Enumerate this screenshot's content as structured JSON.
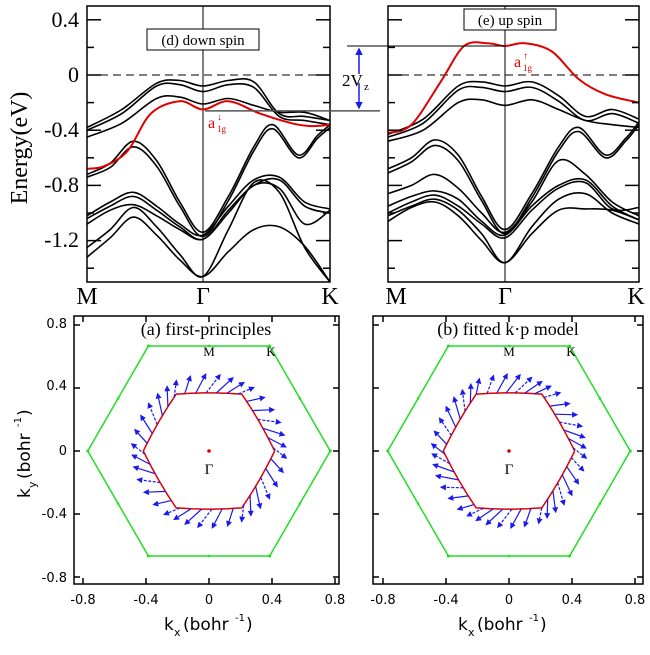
{
  "colors": {
    "band": "#000000",
    "highlight_band": "#e00000",
    "bz_boundary": "#22dd22",
    "fermi_contour": "#e00000",
    "spin_arrow": "#1a1aee",
    "gamma_point": "#e00000",
    "annotation_arrow": "#1a1aee"
  },
  "chart_data": [
    {
      "id": "d",
      "type": "line",
      "title": "(d) down spin",
      "ylabel": "Energy(eV)",
      "xlabel": "",
      "ylim": [
        -1.5,
        0.5
      ],
      "yticks": [
        0.4,
        0,
        -0.4,
        -0.8,
        -1.2
      ],
      "ytick_labels": [
        "0.4",
        "0",
        "-0.4",
        "-0.8",
        "-1.2"
      ],
      "xticks": [
        0,
        1,
        2
      ],
      "xtick_labels": [
        "M",
        "Γ",
        "K"
      ],
      "fermi_level": 0,
      "highlight_label": "a1g↓",
      "highlight_label_main": "a",
      "highlight_label_sub": "1g",
      "highlight_label_sup": "↓",
      "highlight_band": {
        "x": [
          0,
          0.15,
          0.35,
          0.55,
          0.8,
          1.0,
          1.2,
          1.45,
          1.7,
          1.85,
          2.0
        ],
        "y": [
          -0.68,
          -0.66,
          -0.55,
          -0.28,
          -0.19,
          -0.25,
          -0.19,
          -0.28,
          -0.35,
          -0.37,
          -0.36
        ]
      },
      "bands": [
        {
          "x": [
            0,
            0.3,
            0.6,
            0.8,
            1.0,
            1.2,
            1.4,
            1.6,
            1.8,
            2.0
          ],
          "y": [
            -0.38,
            -0.25,
            -0.06,
            -0.04,
            -0.08,
            -0.04,
            -0.05,
            -0.28,
            -0.3,
            -0.33
          ]
        },
        {
          "x": [
            0,
            0.3,
            0.6,
            0.8,
            1.0,
            1.2,
            1.4,
            1.6,
            1.8,
            2.0
          ],
          "y": [
            -0.4,
            -0.28,
            -0.08,
            -0.07,
            -0.12,
            -0.07,
            -0.09,
            -0.3,
            -0.33,
            -0.36
          ]
        },
        {
          "x": [
            0,
            0.3,
            0.6,
            0.8,
            1.0,
            1.2,
            1.4,
            1.6,
            1.8,
            2.0
          ],
          "y": [
            -0.45,
            -0.35,
            -0.17,
            -0.16,
            -0.21,
            -0.17,
            -0.22,
            -0.27,
            -0.27,
            -0.33
          ]
        },
        {
          "x": [
            0,
            0.2,
            0.4,
            0.6,
            0.8,
            1.0,
            1.2,
            1.4,
            1.55,
            1.75,
            1.9,
            2.0
          ],
          "y": [
            -0.72,
            -0.64,
            -0.48,
            -0.62,
            -0.92,
            -1.14,
            -0.88,
            -0.52,
            -0.36,
            -0.58,
            -0.44,
            -0.36
          ]
        },
        {
          "x": [
            0,
            0.2,
            0.4,
            0.6,
            0.8,
            1.0,
            1.2,
            1.4,
            1.55,
            1.75,
            1.9,
            2.0
          ],
          "y": [
            -0.74,
            -0.67,
            -0.52,
            -0.66,
            -0.95,
            -1.17,
            -0.91,
            -0.55,
            -0.39,
            -0.6,
            -0.46,
            -0.38
          ]
        },
        {
          "x": [
            0,
            0.2,
            0.4,
            0.6,
            0.8,
            1.0,
            1.2,
            1.4,
            1.6,
            1.8,
            2.0
          ],
          "y": [
            -1.02,
            -0.92,
            -0.85,
            -0.95,
            -1.08,
            -1.16,
            -0.95,
            -0.76,
            -0.74,
            -0.92,
            -0.97
          ]
        },
        {
          "x": [
            0,
            0.2,
            0.4,
            0.6,
            0.8,
            1.0,
            1.2,
            1.4,
            1.6,
            1.8,
            2.0
          ],
          "y": [
            -1.04,
            -0.95,
            -0.88,
            -0.98,
            -1.1,
            -1.19,
            -0.98,
            -0.8,
            -0.76,
            -0.95,
            -1.0
          ]
        },
        {
          "x": [
            0,
            0.2,
            0.4,
            0.6,
            0.8,
            1.0,
            1.2,
            1.4,
            1.6,
            1.8,
            2.0
          ],
          "y": [
            -1.08,
            -0.98,
            -0.94,
            -1.02,
            -1.12,
            -1.19,
            -1.0,
            -0.8,
            -0.82,
            -1.08,
            -0.98
          ]
        },
        {
          "x": [
            0,
            0.2,
            0.4,
            0.6,
            0.8,
            1.0,
            1.2,
            1.4,
            1.6,
            1.8,
            2.0
          ],
          "y": [
            -1.25,
            -1.12,
            -0.96,
            -1.1,
            -1.3,
            -1.46,
            -1.12,
            -0.78,
            -0.85,
            -1.25,
            -1.5
          ]
        },
        {
          "x": [
            0,
            0.2,
            0.4,
            0.6,
            0.8,
            1.0,
            1.2,
            1.4,
            1.6,
            1.8,
            2.0
          ],
          "y": [
            -1.32,
            -1.18,
            -1.03,
            -1.16,
            -1.34,
            -1.46,
            -1.28,
            -1.12,
            -1.1,
            -1.24,
            -1.5
          ]
        }
      ]
    },
    {
      "id": "e",
      "type": "line",
      "title": "(e) up spin",
      "ylabel": "",
      "xlabel": "",
      "ylim": [
        -1.5,
        0.5
      ],
      "yticks": [
        0.4,
        0,
        -0.4,
        -0.8,
        -1.2
      ],
      "ytick_labels": [],
      "xticks": [
        0,
        1,
        2
      ],
      "xtick_labels": [
        "M",
        "Γ",
        "K"
      ],
      "fermi_level": 0,
      "highlight_label": "a1g↑",
      "highlight_label_main": "a",
      "highlight_label_sub": "1g",
      "highlight_label_sup": "↑",
      "splitting_label": "2V",
      "splitting_label_sub": "z",
      "splitting_levels_eV": [
        0.21,
        -0.26
      ],
      "highlight_band": {
        "x": [
          0,
          0.2,
          0.45,
          0.65,
          0.85,
          1.0,
          1.15,
          1.35,
          1.55,
          1.75,
          2.0
        ],
        "y": [
          -0.42,
          -0.36,
          -0.05,
          0.21,
          0.23,
          0.21,
          0.23,
          0.17,
          -0.03,
          -0.14,
          -0.2
        ]
      },
      "bands": [
        {
          "x": [
            0,
            0.3,
            0.6,
            0.8,
            1.0,
            1.2,
            1.4,
            1.6,
            1.8,
            2.0
          ],
          "y": [
            -0.43,
            -0.32,
            -0.08,
            -0.05,
            -0.08,
            -0.05,
            -0.15,
            -0.3,
            -0.25,
            -0.32
          ]
        },
        {
          "x": [
            0,
            0.3,
            0.6,
            0.8,
            1.0,
            1.2,
            1.4,
            1.6,
            1.8,
            2.0
          ],
          "y": [
            -0.45,
            -0.35,
            -0.11,
            -0.09,
            -0.12,
            -0.09,
            -0.19,
            -0.33,
            -0.28,
            -0.35
          ]
        },
        {
          "x": [
            0,
            0.3,
            0.6,
            0.8,
            1.0,
            1.2,
            1.4,
            1.6,
            1.8,
            2.0
          ],
          "y": [
            -0.48,
            -0.4,
            -0.2,
            -0.18,
            -0.22,
            -0.18,
            -0.25,
            -0.33,
            -0.36,
            -0.38
          ]
        },
        {
          "x": [
            0,
            0.2,
            0.4,
            0.6,
            0.8,
            1.0,
            1.2,
            1.4,
            1.55,
            1.75,
            1.9,
            2.0
          ],
          "y": [
            -0.68,
            -0.6,
            -0.47,
            -0.58,
            -0.88,
            -1.12,
            -0.86,
            -0.52,
            -0.38,
            -0.58,
            -0.46,
            -0.34
          ]
        },
        {
          "x": [
            0,
            0.2,
            0.4,
            0.6,
            0.8,
            1.0,
            1.2,
            1.4,
            1.55,
            1.75,
            1.9,
            2.0
          ],
          "y": [
            -0.71,
            -0.63,
            -0.51,
            -0.62,
            -0.91,
            -1.15,
            -0.89,
            -0.55,
            -0.41,
            -0.6,
            -0.48,
            -0.36
          ]
        },
        {
          "x": [
            0,
            0.2,
            0.4,
            0.6,
            0.8,
            1.0,
            1.2,
            1.4,
            1.6,
            1.8,
            2.0
          ],
          "y": [
            -0.86,
            -0.8,
            -0.72,
            -0.82,
            -1.0,
            -1.14,
            -0.92,
            -0.62,
            -0.72,
            -0.92,
            -1.02
          ]
        },
        {
          "x": [
            0,
            0.2,
            0.4,
            0.6,
            0.8,
            1.0,
            1.2,
            1.4,
            1.6,
            1.8,
            2.0
          ],
          "y": [
            -0.95,
            -0.88,
            -0.84,
            -0.9,
            -1.06,
            -1.16,
            -0.95,
            -0.8,
            -0.76,
            -0.95,
            -1.05
          ]
        },
        {
          "x": [
            0,
            0.2,
            0.4,
            0.6,
            0.8,
            1.0,
            1.2,
            1.4,
            1.6,
            1.8,
            2.0
          ],
          "y": [
            -1.0,
            -0.92,
            -0.87,
            -0.95,
            -1.08,
            -1.18,
            -0.98,
            -0.82,
            -0.78,
            -0.97,
            -0.96
          ]
        },
        {
          "x": [
            0,
            0.2,
            0.4,
            0.6,
            0.8,
            1.0,
            1.2,
            1.4,
            1.6,
            1.8,
            2.0
          ],
          "y": [
            -1.02,
            -0.95,
            -0.9,
            -0.98,
            -1.15,
            -1.36,
            -1.1,
            -0.9,
            -0.86,
            -1.0,
            -1.08
          ]
        },
        {
          "x": [
            0,
            0.2,
            0.4,
            0.6,
            0.8,
            1.0,
            1.2,
            1.4,
            1.6,
            1.8,
            2.0
          ],
          "y": [
            -1.06,
            -0.96,
            -0.92,
            -1.02,
            -1.2,
            -1.36,
            -1.15,
            -0.98,
            -0.97,
            -0.98,
            -1.05
          ]
        }
      ]
    },
    {
      "id": "a",
      "type": "scatter",
      "title": "(a) first-principles",
      "xlabel": "kx (bohr-1)",
      "xlabel_main": "k",
      "xlabel_sub": "x",
      "xlabel_unit": "(bohr",
      "xlabel_sup": "-1",
      "ylabel_main": "k",
      "ylabel_sub": "y",
      "ylabel_unit": "(bohr",
      "ylabel_sup": "-1",
      "xlim": [
        -0.85,
        0.85
      ],
      "ylim": [
        -0.85,
        0.85
      ],
      "xticks": [
        -0.8,
        -0.4,
        0,
        0.4,
        0.8
      ],
      "xtick_labels": [
        "-0.8",
        "-0.4",
        "0",
        "0.4",
        "0.8"
      ],
      "yticks": [
        0.8,
        0.4,
        0,
        -0.4,
        -0.8
      ],
      "ytick_labels": [
        "0.8",
        "0.4",
        "0",
        "-0.4",
        "-0.8"
      ],
      "bz_radius": 0.77,
      "fermi_contour_radius": 0.42,
      "point_labels": [
        "M",
        "K",
        "Γ"
      ],
      "arrow_tilt_deg": 65,
      "arrow_count": 36
    },
    {
      "id": "b",
      "type": "scatter",
      "title": "(b) fitted k·p model",
      "xlabel": "kx (bohr-1)",
      "xlabel_main": "k",
      "xlabel_sub": "x",
      "xlabel_unit": "(bohr",
      "xlabel_sup": "-1",
      "xlim": [
        -0.85,
        0.85
      ],
      "ylim": [
        -0.85,
        0.85
      ],
      "xticks": [
        -0.8,
        -0.4,
        0,
        0.4,
        0.8
      ],
      "xtick_labels": [
        "-0.8",
        "-0.4",
        "0",
        "0.4",
        "0.8"
      ],
      "yticks": [
        0.8,
        0.4,
        0,
        -0.4,
        -0.8
      ],
      "ytick_labels": [],
      "bz_radius": 0.77,
      "fermi_contour_radius": 0.42,
      "point_labels": [
        "M",
        "K",
        "Γ"
      ],
      "arrow_tilt_deg": 65,
      "arrow_count": 40
    }
  ]
}
